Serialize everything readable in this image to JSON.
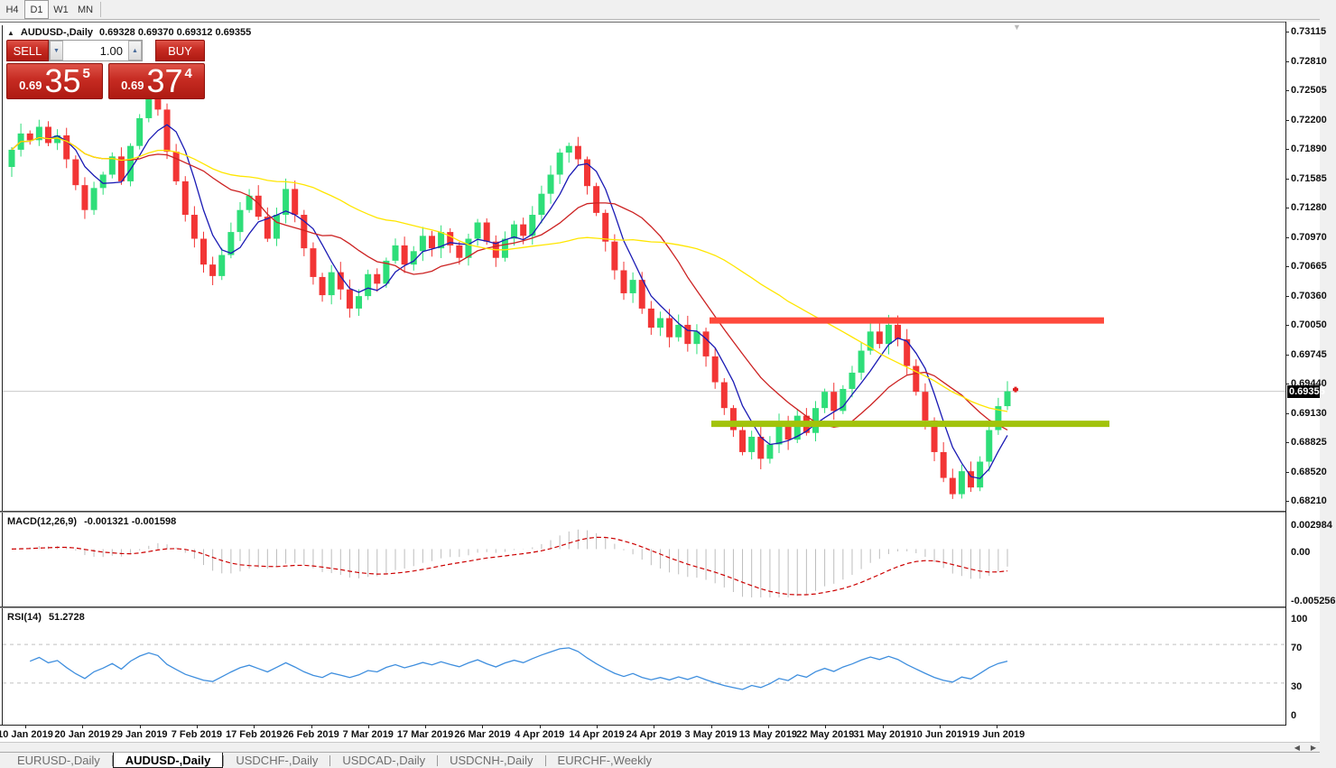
{
  "toolbar": {
    "timeframes": [
      {
        "label": "H4",
        "active": false
      },
      {
        "label": "D1",
        "active": true
      },
      {
        "label": "W1",
        "active": false
      },
      {
        "label": "MN",
        "active": false
      }
    ]
  },
  "chart": {
    "title_marker": "▲",
    "symbol": "AUDUSD-,Daily",
    "ohlc": "0.69328 0.69370 0.69312 0.69355",
    "shift_marker": "▼"
  },
  "trade_panel": {
    "sell_label": "SELL",
    "buy_label": "BUY",
    "volume": "1.00",
    "spin_down": "▼",
    "spin_up": "▲",
    "bid": {
      "prefix": "0.69",
      "big": "35",
      "sup": "5"
    },
    "ask": {
      "prefix": "0.69",
      "big": "37",
      "sup": "4"
    }
  },
  "price_axis": {
    "labels": [
      "0.73115",
      "0.72810",
      "0.72505",
      "0.72200",
      "0.71890",
      "0.71585",
      "0.71280",
      "0.70970",
      "0.70665",
      "0.70360",
      "0.70050",
      "0.69745",
      "0.69440",
      "0.69130",
      "0.68825",
      "0.68520",
      "0.68210"
    ],
    "current": "0.69355"
  },
  "macd_panel": {
    "label": "MACD(12,26,9)",
    "values": "-0.001321 -0.001598",
    "axis_labels": [
      "0.002984",
      "0.00",
      "-0.005256"
    ]
  },
  "rsi_panel": {
    "label": "RSI(14)",
    "value": "51.2728",
    "axis_labels": [
      "100",
      "70",
      "30",
      "0"
    ]
  },
  "scrollbar": {
    "left_arrow": "◀",
    "right_arrow": "▶"
  },
  "tabs": [
    {
      "label": "EURUSD-,Daily",
      "active": false
    },
    {
      "label": "AUDUSD-,Daily",
      "active": true
    },
    {
      "label": "USDCHF-,Daily",
      "active": false
    },
    {
      "label": "USDCAD-,Daily",
      "active": false
    },
    {
      "label": "USDCNH-,Daily",
      "active": false
    },
    {
      "label": "EURCHF-,Weekly",
      "active": false
    }
  ],
  "colors": {
    "candle_up": "#2ede79",
    "candle_down": "#f23535",
    "ma_fast": "#1a1ab4",
    "ma_mid": "#cc2222",
    "ma_slow": "#ffe600",
    "resistance": "#ff4a3c",
    "support": "#a2c30b",
    "current_price_line": "#c9c9c9",
    "macd_hist": "#bdbdbd",
    "macd_signal": "#cc0000",
    "rsi_line": "#3e8ede",
    "level_dash": "#c0c0c0",
    "marker_red": "#e02020"
  },
  "chart_data": {
    "type": "candlestick",
    "symbol": "AUDUSD",
    "timeframe": "Daily",
    "y_range": [
      0.6821,
      0.73115
    ],
    "time_labels": [
      "10 Jan 2019",
      "20 Jan 2019",
      "29 Jan 2019",
      "7 Feb 2019",
      "17 Feb 2019",
      "26 Feb 2019",
      "7 Mar 2019",
      "17 Mar 2019",
      "26 Mar 2019",
      "4 Apr 2019",
      "14 Apr 2019",
      "24 Apr 2019",
      "3 May 2019",
      "13 May 2019",
      "22 May 2019",
      "31 May 2019",
      "10 Jun 2019",
      "19 Jun 2019"
    ],
    "open_first": 0.717,
    "closes": [
      0.7188,
      0.7205,
      0.7198,
      0.7212,
      0.7195,
      0.7203,
      0.7178,
      0.7151,
      0.7125,
      0.7148,
      0.7162,
      0.7181,
      0.7155,
      0.7192,
      0.7221,
      0.7242,
      0.723,
      0.7186,
      0.7155,
      0.712,
      0.7095,
      0.7068,
      0.7056,
      0.7078,
      0.7102,
      0.7125,
      0.714,
      0.7118,
      0.7095,
      0.712,
      0.7147,
      0.712,
      0.7085,
      0.7055,
      0.7036,
      0.706,
      0.7042,
      0.7022,
      0.7035,
      0.7058,
      0.7048,
      0.7072,
      0.7088,
      0.7068,
      0.7082,
      0.7098,
      0.7085,
      0.7102,
      0.7088,
      0.7075,
      0.7095,
      0.7112,
      0.7092,
      0.7075,
      0.7095,
      0.711,
      0.7098,
      0.712,
      0.7142,
      0.7162,
      0.7185,
      0.7192,
      0.7178,
      0.715,
      0.7122,
      0.7092,
      0.7062,
      0.7038,
      0.7052,
      0.7022,
      0.7002,
      0.7012,
      0.6992,
      0.7005,
      0.6985,
      0.6998,
      0.6972,
      0.6945,
      0.6918,
      0.6895,
      0.6872,
      0.6888,
      0.6865,
      0.688,
      0.6902,
      0.6885,
      0.691,
      0.6892,
      0.6918,
      0.6935,
      0.6915,
      0.6938,
      0.6955,
      0.6978,
      0.6998,
      0.6985,
      0.7005,
      0.699,
      0.6962,
      0.6935,
      0.6905,
      0.6872,
      0.6845,
      0.6828,
      0.6852,
      0.6835,
      0.6862,
      0.6895,
      0.692,
      0.69355
    ],
    "moving_averages": [
      {
        "period": 5,
        "color_key": "ma_fast"
      },
      {
        "period": 13,
        "color_key": "ma_mid"
      },
      {
        "period": 34,
        "color_key": "ma_slow"
      }
    ],
    "hlines": [
      {
        "price": 0.70095,
        "x1": 783,
        "x2": 1220,
        "thickness": 7,
        "color_key": "resistance"
      },
      {
        "price": 0.69015,
        "x1": 785,
        "x2": 1226,
        "thickness": 7,
        "color_key": "support"
      }
    ],
    "current_price": 0.69355,
    "macd": {
      "fast": 12,
      "slow": 26,
      "signal": 9,
      "range": [
        -0.005256,
        0.002984
      ]
    },
    "rsi": {
      "period": 14,
      "levels": [
        70,
        30
      ],
      "range": [
        0,
        100
      ]
    }
  }
}
